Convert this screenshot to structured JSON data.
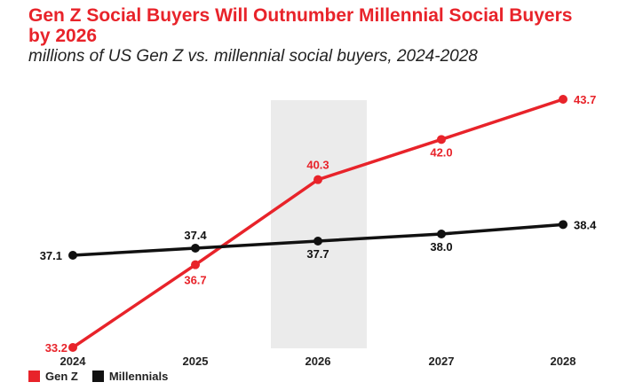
{
  "chart_data": {
    "type": "line",
    "title": "Gen Z Social Buyers Will Outnumber Millennial Social Buyers by 2026",
    "subtitle": "millions of US Gen Z vs. millennial social buyers, 2024-2028",
    "categories": [
      "2024",
      "2025",
      "2026",
      "2027",
      "2028"
    ],
    "highlight_category": "2026",
    "series": [
      {
        "name": "Gen Z",
        "color": "#e8232a",
        "values": [
          33.2,
          36.7,
          40.3,
          42.0,
          43.7
        ],
        "labels": [
          "33.2",
          "36.7",
          "40.3",
          "42.0",
          "43.7"
        ]
      },
      {
        "name": "Millennials",
        "color": "#111111",
        "values": [
          37.1,
          37.4,
          37.7,
          38.0,
          38.4
        ],
        "labels": [
          "37.1",
          "37.4",
          "37.7",
          "38.0",
          "38.4"
        ]
      }
    ],
    "ylim": [
      33.2,
      43.7
    ],
    "grid": false,
    "legend": "bottom-left"
  }
}
